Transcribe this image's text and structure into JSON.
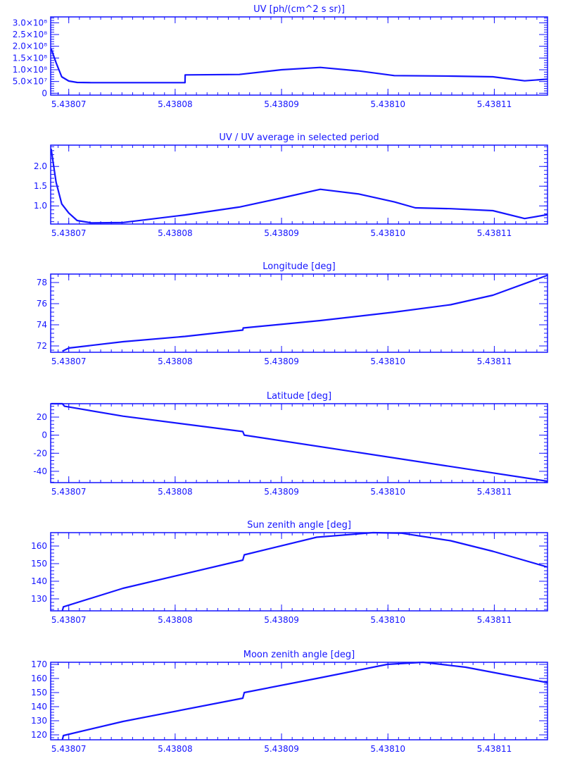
{
  "colors": {
    "ink": "#1414ff",
    "background": "#ffffff"
  },
  "chart_data": [
    {
      "type": "line",
      "title": "UV [ph/(cm^2 s sr)]",
      "xlim": [
        5.4380683,
        5.438115
      ],
      "ylim": [
        -8000000,
        325000000
      ],
      "xticks": [
        5.43807,
        5.43808,
        5.43809,
        5.4381,
        5.43811
      ],
      "xtick_labels": [
        "5.43807",
        "5.43808",
        "5.43809",
        "5.43810",
        "5.43811"
      ],
      "yticks": [
        0,
        50000000,
        100000000,
        150000000,
        200000000,
        250000000,
        300000000
      ],
      "ytick_labels": [
        "0",
        "5.0×10⁷",
        "1.0×10⁸",
        "1.5×10⁸",
        "2.0×10⁸",
        "2.5×10⁸",
        "3.0×10⁸"
      ],
      "points": [
        [
          5.43806834,
          190000000
        ],
        [
          5.43806881,
          130000000
        ],
        [
          5.43806934,
          70000000
        ],
        [
          5.43807,
          52000000
        ],
        [
          5.43807079,
          46000000
        ],
        [
          5.43807212,
          45000000
        ],
        [
          5.43808093,
          45000000
        ],
        [
          5.43808094,
          78000000
        ],
        [
          5.43808603,
          80000000
        ],
        [
          5.43809,
          100000000
        ],
        [
          5.43809364,
          110000000
        ],
        [
          5.43809728,
          95000000
        ],
        [
          5.4381006,
          75000000
        ],
        [
          5.43810589,
          73000000
        ],
        [
          5.43810987,
          70000000
        ],
        [
          5.43811285,
          53000000
        ],
        [
          5.43811503,
          60000000
        ]
      ]
    },
    {
      "type": "line",
      "title": "UV / UV average in selected period",
      "xlim": [
        5.4380683,
        5.438115
      ],
      "ylim": [
        0.54,
        2.54
      ],
      "xticks": [
        5.43807,
        5.43808,
        5.43809,
        5.4381,
        5.43811
      ],
      "xtick_labels": [
        "5.43807",
        "5.43808",
        "5.43809",
        "5.43810",
        "5.43811"
      ],
      "yticks": [
        1.0,
        1.5,
        2.0
      ],
      "ytick_labels": [
        "1.0",
        "1.5",
        "2.0"
      ],
      "points": [
        [
          5.43806834,
          2.45
        ],
        [
          5.43806881,
          1.6
        ],
        [
          5.43806934,
          1.05
        ],
        [
          5.43807,
          0.82
        ],
        [
          5.43807079,
          0.63
        ],
        [
          5.43807212,
          0.57
        ],
        [
          5.4380751,
          0.58
        ],
        [
          5.43808093,
          0.77
        ],
        [
          5.43808603,
          0.97
        ],
        [
          5.43809,
          1.2
        ],
        [
          5.43809364,
          1.42
        ],
        [
          5.43809728,
          1.3
        ],
        [
          5.4381006,
          1.1
        ],
        [
          5.43810258,
          0.95
        ],
        [
          5.43810589,
          0.93
        ],
        [
          5.43810987,
          0.88
        ],
        [
          5.43811285,
          0.68
        ],
        [
          5.43811503,
          0.78
        ]
      ]
    },
    {
      "type": "line",
      "title": "Longitude [deg]",
      "xlim": [
        5.4380683,
        5.438115
      ],
      "ylim": [
        71.4,
        78.8
      ],
      "xticks": [
        5.43807,
        5.43808,
        5.43809,
        5.4381,
        5.43811
      ],
      "xtick_labels": [
        "5.43807",
        "5.43808",
        "5.43809",
        "5.43810",
        "5.43811"
      ],
      "yticks": [
        72,
        74,
        76,
        78
      ],
      "ytick_labels": [
        "72",
        "74",
        "76",
        "78"
      ],
      "points": [
        [
          5.4380694,
          71.5
        ],
        [
          5.43807,
          71.8
        ],
        [
          5.4380751,
          72.4
        ],
        [
          5.43808093,
          72.9
        ],
        [
          5.43808636,
          73.5
        ],
        [
          5.4380864,
          73.7
        ],
        [
          5.43809364,
          74.4
        ],
        [
          5.4381006,
          75.2
        ],
        [
          5.43810589,
          75.9
        ],
        [
          5.43810987,
          76.8
        ],
        [
          5.43811503,
          78.7
        ]
      ]
    },
    {
      "type": "line",
      "title": "Latitude [deg]",
      "xlim": [
        5.4380683,
        5.438115
      ],
      "ylim": [
        -52.5,
        34.8
      ],
      "xticks": [
        5.43807,
        5.43808,
        5.43809,
        5.4381,
        5.43811
      ],
      "xtick_labels": [
        "5.43807",
        "5.43808",
        "5.43809",
        "5.43810",
        "5.43811"
      ],
      "yticks": [
        -40,
        -20,
        0,
        20
      ],
      "ytick_labels": [
        "-40",
        "-20",
        "0",
        "20"
      ],
      "points": [
        [
          5.43806834,
          34.8
        ],
        [
          5.4380694,
          34.8
        ],
        [
          5.4380696,
          32
        ],
        [
          5.4380751,
          21
        ],
        [
          5.43808636,
          4
        ],
        [
          5.4380865,
          0
        ],
        [
          5.43811503,
          -51
        ]
      ]
    },
    {
      "type": "line",
      "title": "Sun zenith angle [deg]",
      "xlim": [
        5.4380683,
        5.438115
      ],
      "ylim": [
        123.2,
        167.6
      ],
      "xticks": [
        5.43807,
        5.43808,
        5.43809,
        5.4381,
        5.43811
      ],
      "xtick_labels": [
        "5.43807",
        "5.43808",
        "5.43809",
        "5.43810",
        "5.43811"
      ],
      "yticks": [
        130,
        140,
        150,
        160
      ],
      "ytick_labels": [
        "130",
        "140",
        "150",
        "160"
      ],
      "points": [
        [
          5.4380694,
          123.2
        ],
        [
          5.4380695,
          125.5
        ],
        [
          5.4380751,
          136
        ],
        [
          5.43808636,
          152
        ],
        [
          5.4380865,
          155
        ],
        [
          5.4380933,
          165
        ],
        [
          5.4380986,
          167.6
        ],
        [
          5.4381013,
          167.3
        ],
        [
          5.43810589,
          163
        ],
        [
          5.43810987,
          157
        ],
        [
          5.43811503,
          148
        ]
      ]
    },
    {
      "type": "line",
      "title": "Moon zenith angle [deg]",
      "xlim": [
        5.4380683,
        5.438115
      ],
      "ylim": [
        116.5,
        171.5
      ],
      "xticks": [
        5.43807,
        5.43808,
        5.43809,
        5.4381,
        5.43811
      ],
      "xtick_labels": [
        "5.43807",
        "5.43808",
        "5.43809",
        "5.43810",
        "5.43811"
      ],
      "yticks": [
        120,
        130,
        140,
        150,
        160,
        170
      ],
      "ytick_labels": [
        "120",
        "130",
        "140",
        "150",
        "160",
        "170"
      ],
      "points": [
        [
          5.4380694,
          116.5
        ],
        [
          5.4380695,
          119.5
        ],
        [
          5.4380751,
          129.5
        ],
        [
          5.43808636,
          146
        ],
        [
          5.4380865,
          150
        ],
        [
          5.4380933,
          160
        ],
        [
          5.43809993,
          170
        ],
        [
          5.4381033,
          171.5
        ],
        [
          5.4381073,
          168
        ],
        [
          5.43811503,
          157
        ]
      ]
    }
  ]
}
